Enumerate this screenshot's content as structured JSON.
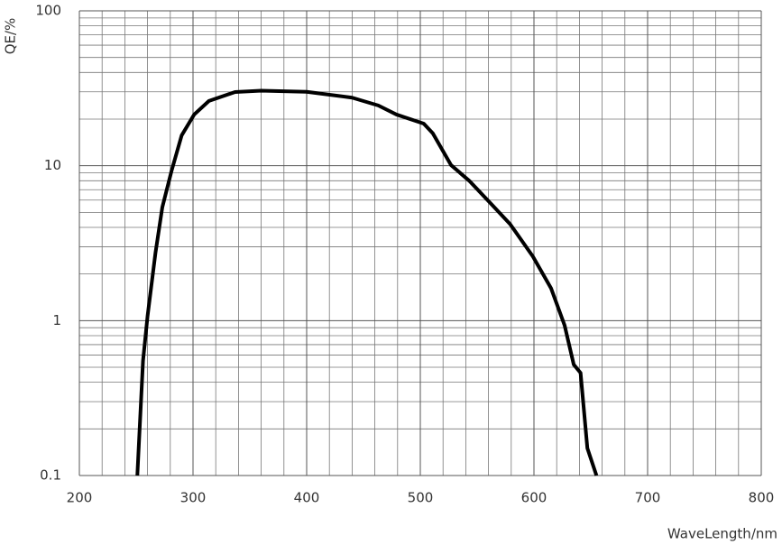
{
  "chart_data": {
    "type": "line",
    "x_label": "WaveLength/nm",
    "y_label": "QE/%",
    "x": [
      251,
      256,
      260,
      267,
      273,
      281,
      290,
      301,
      314,
      337,
      360,
      400,
      440,
      463,
      479,
      503,
      511,
      527,
      543,
      563,
      579,
      599,
      615,
      627,
      635,
      641,
      647,
      655
    ],
    "series": [
      {
        "color": "#000000",
        "values": [
          0.1,
          0.55,
          1.07,
          2.75,
          5.4,
          9.2,
          15.7,
          21.4,
          26.2,
          29.9,
          30.5,
          30,
          27.5,
          24.5,
          21.4,
          18.7,
          16.2,
          10.1,
          8.0,
          5.6,
          4.2,
          2.6,
          1.62,
          0.93,
          0.52,
          0.46,
          0.15,
          0.1
        ]
      }
    ],
    "xlim": [
      200,
      800
    ],
    "xticks": [
      200,
      300,
      400,
      500,
      600,
      700,
      800
    ],
    "ylim": [
      0.1,
      100
    ],
    "yticks": [
      0.1,
      1,
      10,
      100
    ],
    "ylog": true,
    "grid": true,
    "minor_grid": true
  }
}
